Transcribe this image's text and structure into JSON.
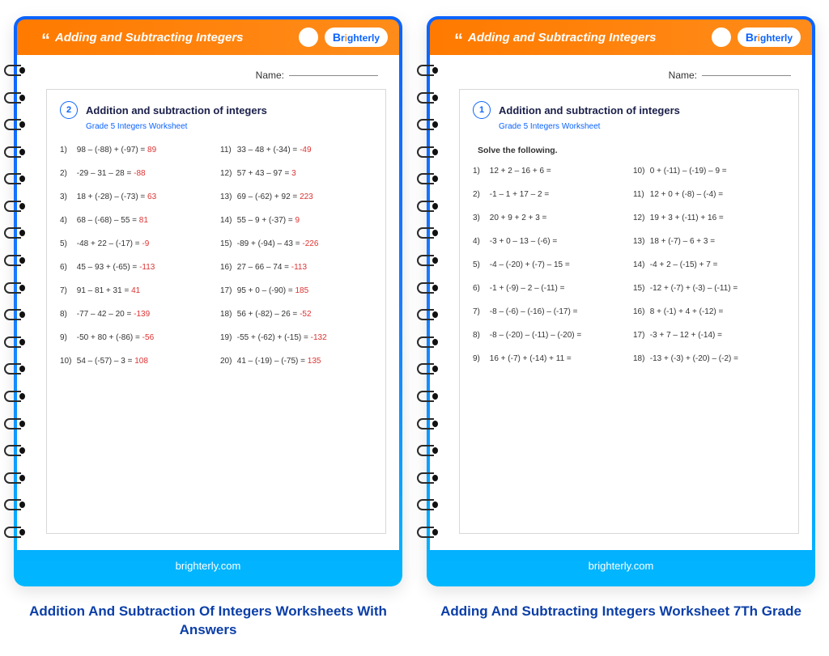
{
  "brand": {
    "logo_text": "Brighterly",
    "footer_text": "brighterly.com"
  },
  "colors": {
    "accent_orange": "#ff8c1a",
    "accent_blue": "#0b63ff",
    "answer_red": "#d33",
    "text_dark": "#1a1f4a",
    "caption_blue": "#0b3ea8"
  },
  "worksheets": [
    {
      "header_title": "Adding and Subtracting Integers",
      "name_label": "Name:",
      "badge_number": "2",
      "title": "Addition and subtraction of integers",
      "subtitle": "Grade 5 Integers Worksheet",
      "solve_label": "",
      "has_answers": true,
      "problems_left": [
        {
          "n": "1)",
          "q": "98 – (-88) + (-97) =",
          "a": "89"
        },
        {
          "n": "2)",
          "q": "-29 – 31 – 28 =",
          "a": "-88"
        },
        {
          "n": "3)",
          "q": "18 + (-28) – (-73) =",
          "a": "63"
        },
        {
          "n": "4)",
          "q": "68 – (-68) – 55 =",
          "a": "81"
        },
        {
          "n": "5)",
          "q": "-48 + 22 – (-17) =",
          "a": "-9"
        },
        {
          "n": "6)",
          "q": "45 – 93 + (-65) =",
          "a": "-113"
        },
        {
          "n": "7)",
          "q": "91 – 81 + 31 =",
          "a": "41"
        },
        {
          "n": "8)",
          "q": "-77 – 42 – 20 =",
          "a": "-139"
        },
        {
          "n": "9)",
          "q": "-50 + 80 + (-86) =",
          "a": "-56"
        },
        {
          "n": "10)",
          "q": "54 – (-57) – 3 =",
          "a": "108"
        }
      ],
      "problems_right": [
        {
          "n": "11)",
          "q": "33 – 48 + (-34) =",
          "a": "-49"
        },
        {
          "n": "12)",
          "q": "57 + 43 – 97 =",
          "a": "3"
        },
        {
          "n": "13)",
          "q": "69 – (-62) + 92 =",
          "a": "223"
        },
        {
          "n": "14)",
          "q": "55 – 9 + (-37) =",
          "a": "9"
        },
        {
          "n": "15)",
          "q": "-89 + (-94) – 43 =",
          "a": "-226"
        },
        {
          "n": "16)",
          "q": "27 – 66 – 74 =",
          "a": "-113"
        },
        {
          "n": "17)",
          "q": "95 + 0 – (-90) =",
          "a": "185"
        },
        {
          "n": "18)",
          "q": "56 + (-82) – 26 =",
          "a": "-52"
        },
        {
          "n": "19)",
          "q": "-55 + (-62) + (-15) =",
          "a": "-132"
        },
        {
          "n": "20)",
          "q": "41 – (-19) – (-75) =",
          "a": "135"
        }
      ],
      "caption": "Addition And Subtraction Of Integers Worksheets With Answers"
    },
    {
      "header_title": "Adding and Subtracting Integers",
      "name_label": "Name:",
      "badge_number": "1",
      "title": "Addition and subtraction of integers",
      "subtitle": "Grade 5 Integers Worksheet",
      "solve_label": "Solve the following.",
      "has_answers": false,
      "problems_left": [
        {
          "n": "1)",
          "q": "12 + 2 – 16 + 6 =",
          "a": ""
        },
        {
          "n": "2)",
          "q": "-1 – 1 + 17 – 2 =",
          "a": ""
        },
        {
          "n": "3)",
          "q": "20 + 9 + 2 + 3 =",
          "a": ""
        },
        {
          "n": "4)",
          "q": "-3 + 0 – 13 – (-6) =",
          "a": ""
        },
        {
          "n": "5)",
          "q": "-4 – (-20) + (-7) – 15 =",
          "a": ""
        },
        {
          "n": "6)",
          "q": "-1 + (-9) – 2 – (-11) =",
          "a": ""
        },
        {
          "n": "7)",
          "q": "-8 – (-6) – (-16) – (-17) =",
          "a": ""
        },
        {
          "n": "8)",
          "q": "-8 – (-20) – (-11) – (-20) =",
          "a": ""
        },
        {
          "n": "9)",
          "q": "16 + (-7) + (-14) + 11 =",
          "a": ""
        }
      ],
      "problems_right": [
        {
          "n": "10)",
          "q": "0 + (-11) – (-19) – 9 =",
          "a": ""
        },
        {
          "n": "11)",
          "q": "12 + 0 + (-8) – (-4) =",
          "a": ""
        },
        {
          "n": "12)",
          "q": "19 + 3 + (-11) + 16 =",
          "a": ""
        },
        {
          "n": "13)",
          "q": "18 + (-7) – 6 + 3 =",
          "a": ""
        },
        {
          "n": "14)",
          "q": "-4 + 2 – (-15) + 7 =",
          "a": ""
        },
        {
          "n": "15)",
          "q": "-12 + (-7) + (-3) – (-11) =",
          "a": ""
        },
        {
          "n": "16)",
          "q": "8 + (-1) + 4 + (-12) =",
          "a": ""
        },
        {
          "n": "17)",
          "q": "-3 + 7 – 12 + (-14) =",
          "a": ""
        },
        {
          "n": "18)",
          "q": "-13 + (-3) + (-20) – (-2) =",
          "a": ""
        }
      ],
      "caption": "Adding And Subtracting Integers Worksheet 7Th Grade"
    }
  ]
}
